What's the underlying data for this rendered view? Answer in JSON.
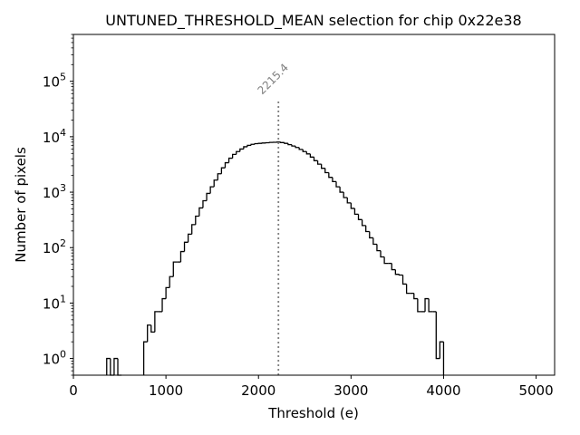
{
  "chart_data": {
    "type": "histogram",
    "title": "UNTUNED_THRESHOLD_MEAN selection for chip 0x22e38",
    "xlabel": "Threshold (e)",
    "ylabel": "Number of pixels",
    "x_scale": "linear",
    "y_scale": "log",
    "xlim": [
      0,
      5200
    ],
    "ylim": [
      0.5,
      700000
    ],
    "x_ticks": [
      {
        "value": 0,
        "label": "0"
      },
      {
        "value": 1000,
        "label": "1000"
      },
      {
        "value": 2000,
        "label": "2000"
      },
      {
        "value": 3000,
        "label": "3000"
      },
      {
        "value": 4000,
        "label": "4000"
      },
      {
        "value": 5000,
        "label": "5000"
      }
    ],
    "y_ticks": [
      {
        "value": 1,
        "base": "10",
        "exp": "0"
      },
      {
        "value": 10,
        "base": "10",
        "exp": "1"
      },
      {
        "value": 100,
        "base": "10",
        "exp": "2"
      },
      {
        "value": 1000,
        "base": "10",
        "exp": "3"
      },
      {
        "value": 10000,
        "base": "10",
        "exp": "4"
      },
      {
        "value": 100000,
        "base": "10",
        "exp": "5"
      }
    ],
    "bin_width": 40,
    "bins": [
      [
        360,
        1
      ],
      [
        400,
        0
      ],
      [
        440,
        1
      ],
      [
        480,
        0
      ],
      [
        760,
        2
      ],
      [
        800,
        4
      ],
      [
        840,
        3
      ],
      [
        880,
        7
      ],
      [
        920,
        7
      ],
      [
        960,
        12
      ],
      [
        1000,
        19
      ],
      [
        1040,
        30
      ],
      [
        1080,
        55
      ],
      [
        1120,
        55
      ],
      [
        1160,
        85
      ],
      [
        1200,
        125
      ],
      [
        1240,
        175
      ],
      [
        1280,
        260
      ],
      [
        1320,
        370
      ],
      [
        1360,
        520
      ],
      [
        1400,
        700
      ],
      [
        1440,
        950
      ],
      [
        1480,
        1250
      ],
      [
        1520,
        1650
      ],
      [
        1560,
        2150
      ],
      [
        1600,
        2750
      ],
      [
        1640,
        3400
      ],
      [
        1680,
        4100
      ],
      [
        1720,
        4800
      ],
      [
        1760,
        5400
      ],
      [
        1800,
        6000
      ],
      [
        1840,
        6600
      ],
      [
        1880,
        7000
      ],
      [
        1920,
        7300
      ],
      [
        1960,
        7500
      ],
      [
        2000,
        7600
      ],
      [
        2040,
        7700
      ],
      [
        2080,
        7800
      ],
      [
        2120,
        7900
      ],
      [
        2160,
        7950
      ],
      [
        2200,
        8000
      ],
      [
        2240,
        7850
      ],
      [
        2280,
        7600
      ],
      [
        2320,
        7200
      ],
      [
        2360,
        6800
      ],
      [
        2400,
        6400
      ],
      [
        2440,
        5900
      ],
      [
        2480,
        5400
      ],
      [
        2520,
        4900
      ],
      [
        2560,
        4300
      ],
      [
        2600,
        3700
      ],
      [
        2640,
        3200
      ],
      [
        2680,
        2700
      ],
      [
        2720,
        2250
      ],
      [
        2760,
        1850
      ],
      [
        2800,
        1550
      ],
      [
        2840,
        1250
      ],
      [
        2880,
        1000
      ],
      [
        2920,
        800
      ],
      [
        2960,
        640
      ],
      [
        3000,
        510
      ],
      [
        3040,
        400
      ],
      [
        3080,
        320
      ],
      [
        3120,
        250
      ],
      [
        3160,
        195
      ],
      [
        3200,
        150
      ],
      [
        3240,
        115
      ],
      [
        3280,
        88
      ],
      [
        3320,
        68
      ],
      [
        3360,
        52
      ],
      [
        3400,
        52
      ],
      [
        3440,
        40
      ],
      [
        3480,
        33
      ],
      [
        3520,
        32
      ],
      [
        3560,
        22
      ],
      [
        3600,
        15
      ],
      [
        3640,
        15
      ],
      [
        3680,
        12
      ],
      [
        3720,
        7
      ],
      [
        3760,
        7
      ],
      [
        3800,
        12
      ],
      [
        3840,
        7
      ],
      [
        3880,
        7
      ],
      [
        3920,
        1
      ],
      [
        3960,
        2
      ]
    ],
    "vline": {
      "x": 2215.4,
      "label": "2215.4",
      "style": "dotted",
      "color": "#808080"
    },
    "line_color": "#000000"
  }
}
